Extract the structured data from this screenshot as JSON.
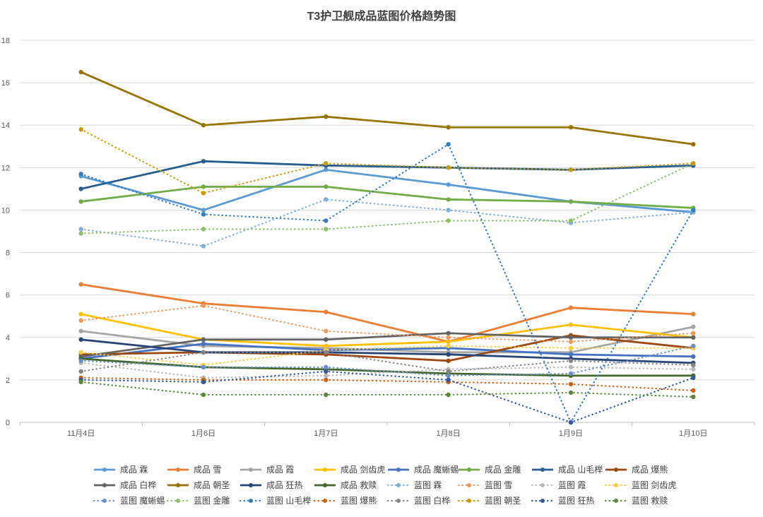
{
  "chart_data": {
    "type": "line",
    "title": "T3护卫舰成品蓝图价格趋势图",
    "xlabel": "",
    "ylabel": "",
    "categories": [
      "11月4日",
      "1月6日",
      "1月7日",
      "1月8日",
      "1月9日",
      "1月10日"
    ],
    "ylim": [
      0,
      18
    ],
    "yticks": [
      0,
      2,
      4,
      6,
      8,
      10,
      12,
      14,
      16,
      18
    ],
    "grid": true,
    "legend_position": "bottom",
    "series": [
      {
        "name": "成品 霖",
        "color": "#5b9bd5",
        "style": "solid",
        "values": [
          11.6,
          10.0,
          11.9,
          11.2,
          10.4,
          9.9
        ]
      },
      {
        "name": "成品 雪",
        "color": "#ed7d31",
        "style": "solid",
        "values": [
          6.5,
          5.6,
          5.2,
          3.8,
          5.4,
          5.1
        ]
      },
      {
        "name": "成品 霞",
        "color": "#a5a5a5",
        "style": "solid",
        "values": [
          4.3,
          3.6,
          3.5,
          3.3,
          3.3,
          4.5
        ]
      },
      {
        "name": "成品 剑齿虎",
        "color": "#ffc000",
        "style": "solid",
        "values": [
          5.1,
          3.9,
          3.6,
          3.8,
          4.6,
          4.0
        ]
      },
      {
        "name": "成品 魔蜥蜴",
        "color": "#4472c4",
        "style": "solid",
        "values": [
          3.0,
          3.7,
          3.4,
          3.5,
          3.2,
          3.1
        ]
      },
      {
        "name": "成品 金雕",
        "color": "#70ad47",
        "style": "solid",
        "values": [
          10.4,
          11.1,
          11.1,
          10.5,
          10.4,
          10.1
        ]
      },
      {
        "name": "成品 山毛榉",
        "color": "#255e91",
        "style": "solid",
        "values": [
          11.0,
          12.3,
          12.1,
          12.0,
          11.9,
          12.1
        ]
      },
      {
        "name": "成品 爆熊",
        "color": "#9e480e",
        "style": "solid",
        "values": [
          3.2,
          3.3,
          3.2,
          2.9,
          4.1,
          3.5
        ]
      },
      {
        "name": "成品 白桦",
        "color": "#636363",
        "style": "solid",
        "values": [
          3.1,
          3.9,
          3.9,
          4.2,
          4.0,
          4.0
        ]
      },
      {
        "name": "成品 朝圣",
        "color": "#997300",
        "style": "solid",
        "values": [
          16.5,
          14.0,
          14.4,
          13.9,
          13.9,
          13.1
        ]
      },
      {
        "name": "成品 狂热",
        "color": "#264478",
        "style": "solid",
        "values": [
          3.9,
          3.3,
          3.3,
          3.2,
          3.0,
          2.8
        ]
      },
      {
        "name": "成品 救赎",
        "color": "#43682b",
        "style": "solid",
        "values": [
          3.0,
          2.6,
          2.5,
          2.3,
          2.2,
          2.2
        ]
      },
      {
        "name": "蓝图 霖",
        "color": "#7cafdd",
        "style": "dotted",
        "values": [
          9.1,
          8.3,
          10.5,
          10.0,
          9.4,
          9.9
        ]
      },
      {
        "name": "蓝图 雪",
        "color": "#f1975a",
        "style": "dotted",
        "values": [
          4.8,
          5.5,
          4.3,
          4.0,
          3.8,
          4.2
        ]
      },
      {
        "name": "蓝图 霞",
        "color": "#b7b7b7",
        "style": "dotted",
        "values": [
          2.8,
          2.1,
          2.2,
          2.5,
          2.6,
          2.5
        ]
      },
      {
        "name": "蓝图 剑齿虎",
        "color": "#ffcd33",
        "style": "dotted",
        "values": [
          3.3,
          2.7,
          3.4,
          3.6,
          3.5,
          3.5
        ]
      },
      {
        "name": "蓝图 魔蜥蜴",
        "color": "#698ed0",
        "style": "dotted",
        "values": [
          2.9,
          2.6,
          2.6,
          2.2,
          2.3,
          3.6
        ]
      },
      {
        "name": "蓝图 金雕",
        "color": "#8cc168",
        "style": "dotted",
        "values": [
          8.9,
          9.1,
          9.1,
          9.5,
          9.5,
          12.2
        ]
      },
      {
        "name": "蓝图 山毛榉",
        "color": "#327dc2",
        "style": "dotted",
        "values": [
          11.7,
          9.8,
          9.5,
          13.1,
          0.0,
          10.0
        ]
      },
      {
        "name": "蓝图 爆熊",
        "color": "#d26012",
        "style": "dotted",
        "values": [
          2.1,
          2.0,
          2.0,
          1.9,
          1.8,
          1.5
        ]
      },
      {
        "name": "蓝图 白桦",
        "color": "#848484",
        "style": "dotted",
        "values": [
          2.4,
          3.3,
          3.3,
          2.4,
          2.9,
          2.7
        ]
      },
      {
        "name": "蓝图 朝圣",
        "color": "#cc9a00",
        "style": "dotted",
        "values": [
          13.8,
          10.8,
          12.2,
          12.0,
          11.9,
          12.2
        ]
      },
      {
        "name": "蓝图 狂热",
        "color": "#335aa1",
        "style": "dotted",
        "values": [
          2.0,
          1.9,
          2.4,
          2.0,
          0.0,
          2.1
        ]
      },
      {
        "name": "蓝图 救赎",
        "color": "#5a8a39",
        "style": "dotted",
        "values": [
          1.9,
          1.3,
          1.3,
          1.3,
          1.4,
          1.2
        ]
      }
    ]
  }
}
